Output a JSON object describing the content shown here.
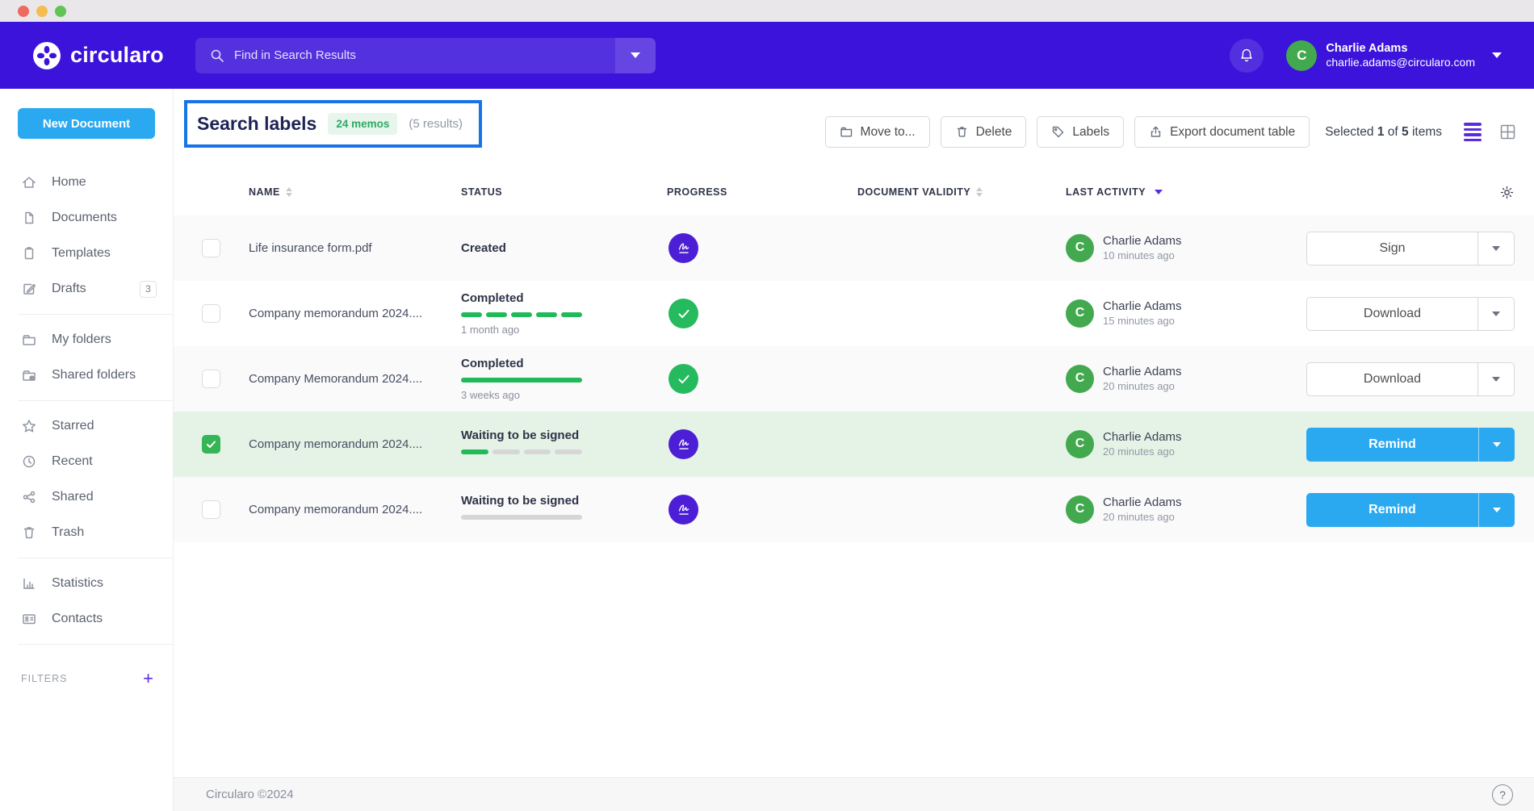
{
  "header": {
    "brand": "circularo",
    "search": {
      "placeholder": "Find in Search Results"
    },
    "user": {
      "name": "Charlie Adams",
      "email": "charlie.adams@circularo.com",
      "avatar_initial": "C"
    }
  },
  "sidebar": {
    "new_document_label": "New Document",
    "sections": [
      {
        "items": [
          {
            "label": "Home",
            "icon": "home-icon"
          },
          {
            "label": "Documents",
            "icon": "document-icon"
          },
          {
            "label": "Templates",
            "icon": "clipboard-icon"
          },
          {
            "label": "Drafts",
            "icon": "pen-square-icon",
            "badge": "3"
          }
        ]
      },
      {
        "items": [
          {
            "label": "My folders",
            "icon": "folder-icon"
          },
          {
            "label": "Shared folders",
            "icon": "shared-folder-icon"
          }
        ]
      },
      {
        "items": [
          {
            "label": "Starred",
            "icon": "star-icon"
          },
          {
            "label": "Recent",
            "icon": "clock-icon"
          },
          {
            "label": "Shared",
            "icon": "share-icon"
          },
          {
            "label": "Trash",
            "icon": "trash-icon"
          }
        ]
      },
      {
        "items": [
          {
            "label": "Statistics",
            "icon": "bar-chart-icon"
          },
          {
            "label": "Contacts",
            "icon": "contact-card-icon"
          }
        ]
      }
    ],
    "filters_label": "FILTERS"
  },
  "page": {
    "title": "Search labels",
    "badge": "24 memos",
    "results": "(5 results)"
  },
  "toolbar": {
    "buttons": [
      {
        "label": "Move to...",
        "icon": "folder-move-icon"
      },
      {
        "label": "Delete",
        "icon": "trash-icon"
      },
      {
        "label": "Labels",
        "icon": "tag-icon"
      },
      {
        "label": "Export document table",
        "icon": "export-icon"
      }
    ],
    "selected": {
      "prefix": "Selected",
      "count": "1",
      "of": "of",
      "total": "5",
      "suffix": "items"
    }
  },
  "table": {
    "columns": [
      {
        "label": "NAME",
        "sort": "both"
      },
      {
        "label": "STATUS",
        "sort": "none"
      },
      {
        "label": "PROGRESS",
        "sort": "none"
      },
      {
        "label": "DOCUMENT VALIDITY",
        "sort": "both"
      },
      {
        "label": "LAST ACTIVITY",
        "sort": "desc"
      }
    ],
    "rows": [
      {
        "name": "Life insurance form.pdf",
        "status": "Created",
        "status_time": "",
        "bar": null,
        "progress_icon": "signature",
        "activity_initial": "C",
        "activity_user": "Charlie Adams",
        "activity_time": "10 minutes ago",
        "action": "Sign",
        "action_style": "white",
        "selected": false
      },
      {
        "name": "Company memorandum 2024....",
        "status": "Completed",
        "status_time": "1 month ago",
        "bar": {
          "segments": 5,
          "filled": 5
        },
        "progress_icon": "check",
        "activity_initial": "C",
        "activity_user": "Charlie Adams",
        "activity_time": "15 minutes ago",
        "action": "Download",
        "action_style": "white",
        "selected": false
      },
      {
        "name": "Company Memorandum 2024....",
        "status": "Completed",
        "status_time": "3 weeks ago",
        "bar": {
          "segments": 1,
          "filled": 1
        },
        "progress_icon": "check",
        "activity_initial": "C",
        "activity_user": "Charlie Adams",
        "activity_time": "20 minutes ago",
        "action": "Download",
        "action_style": "white",
        "selected": false
      },
      {
        "name": "Company memorandum 2024....",
        "status": "Waiting to be signed",
        "status_time": "",
        "bar": {
          "segments": 4,
          "filled": 1
        },
        "progress_icon": "signature",
        "activity_initial": "C",
        "activity_user": "Charlie Adams",
        "activity_time": "20 minutes ago",
        "action": "Remind",
        "action_style": "blue",
        "selected": true
      },
      {
        "name": "Company memorandum 2024....",
        "status": "Waiting to be signed",
        "status_time": "",
        "bar": {
          "segments": 1,
          "filled": 0
        },
        "progress_icon": "signature",
        "activity_initial": "C",
        "activity_user": "Charlie Adams",
        "activity_time": "20 minutes ago",
        "action": "Remind",
        "action_style": "blue",
        "selected": false
      }
    ]
  },
  "footer": {
    "copyright": "Circularo ©2024",
    "help": "?"
  },
  "colors": {
    "header_purple": "#3B13DB",
    "accent_blue": "#2AA9F0",
    "highlight_border": "#1774E8",
    "progress_green": "#21BA5A",
    "avatar_green": "#43A94F",
    "selected_row_green": "#E5F3E7",
    "active_view_purple": "#5B2BE0"
  }
}
